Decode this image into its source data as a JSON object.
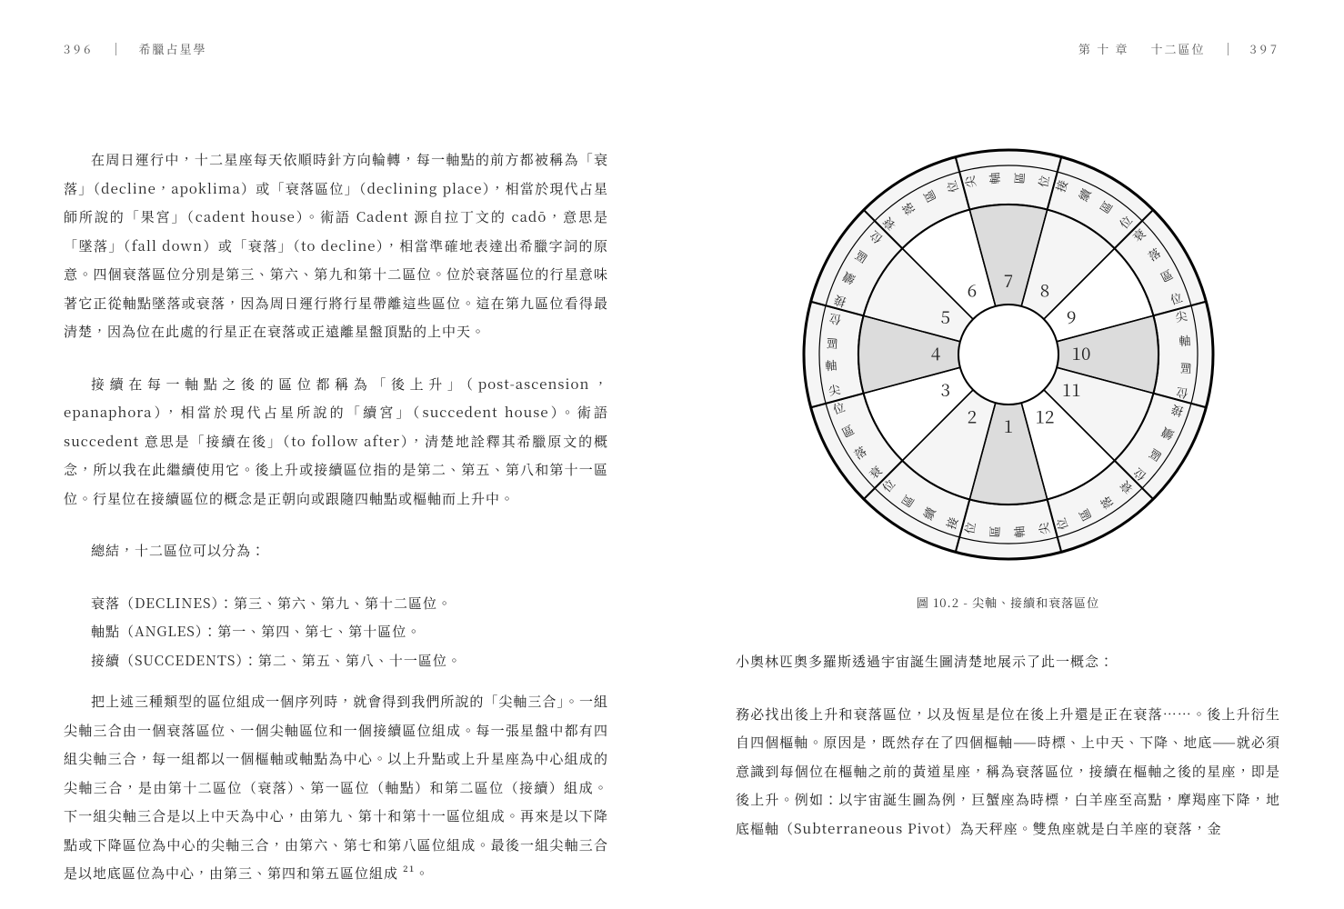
{
  "leftHeader": {
    "pageNum": "396",
    "bookTitle": "希臘占星學"
  },
  "rightHeader": {
    "chapter": "第 十 章",
    "section": "十二區位",
    "pageNum": "397"
  },
  "left": {
    "p1": "在周日運行中，十二星座每天依順時針方向輪轉，每一軸點的前方都被稱為「衰落」（decline，apoklima）或「衰落區位」（declining place），相當於現代占星師所說的「果宮」（cadent house）。術語 Cadent 源自拉丁文的 cadō，意思是「墜落」（fall down）或「衰落」（to decline），相當準確地表達出希臘字詞的原意。四個衰落區位分別是第三、第六、第九和第十二區位。位於衰落區位的行星意味著它正從軸點墜落或衰落，因為周日運行將行星帶離這些區位。這在第九區位看得最清楚，因為位在此處的行星正在衰落或正遠離星盤頂點的上中天。",
    "p2": "接續在每一軸點之後的區位都稱為「後上升」（post-ascension，epanaphora），相當於現代占星所說的「續宮」（succedent house）。術語 succedent 意思是「接續在後」（to follow after），清楚地詮釋其希臘原文的概念，所以我在此繼續使用它。後上升或接續區位指的是第二、第五、第八和第十一區位。行星位在接續區位的概念是正朝向或跟隨四軸點或樞軸而上升中。",
    "p3": "總結，十二區位可以分為：",
    "list1": "衰落（DECLINES）：第三、第六、第九、第十二區位。",
    "list2": "軸點（ANGLES）：第一、第四、第七、第十區位。",
    "list3": "接續（SUCCEDENTS）：第二、第五、第八、十一區位。",
    "p4": "把上述三種類型的區位組成一個序列時，就會得到我們所說的「尖軸三合」。一組尖軸三合由一個衰落區位、一個尖軸區位和一個接續區位組成。每一張星盤中都有四組尖軸三合，每一組都以一個樞軸或軸點為中心。以上升點或上升星座為中心組成的尖軸三合，是由第十二區位（衰落）、第一區位（軸點）和第二區位（接續）組成。下一組尖軸三合是以上中天為中心，由第九、第十和第十一區位組成。再來是以下降點或下降區位為中心的尖軸三合，由第六、第七和第八區位組成。最後一組尖軸三合是以地底區位為中心，由第三、第四和第五區位組成 ²¹。"
  },
  "right": {
    "caption": "圖 10.2 - 尖軸、接續和衰落區位",
    "p1": "小奧林匹奧多羅斯透過宇宙誕生圖清楚地展示了此一概念：",
    "p2": "務必找出後上升和衰落區位，以及恆星是位在後上升還是正在衰落……。後上升衍生自四個樞軸。原因是，既然存在了四個樞軸——時標、上中天、下降、地底——就必須意識到每個位在樞軸之前的黃道星座，稱為衰落區位，接續在樞軸之後的星座，即是後上升。例如：以宇宙誕生圖為例，巨蟹座為時標，白羊座至高點，摩羯座下降，地底樞軸（Subterraneous Pivot）為天秤座。雙魚座就是白羊座的衰落，金"
  },
  "chart": {
    "labels": {
      "angle": "尖軸區位",
      "succedent": "接續區位",
      "cadent": "衰落區位"
    },
    "colors": {
      "angle": "#dcdcdc",
      "succedent": "#f5f5f5",
      "cadent": "#ffffff",
      "stroke": "#000000",
      "ring": "#f5f5f5"
    },
    "houses": [
      {
        "num": 1,
        "type": "angle",
        "midDeg": 180
      },
      {
        "num": 2,
        "type": "succedent",
        "midDeg": 210
      },
      {
        "num": 3,
        "type": "cadent",
        "midDeg": 240
      },
      {
        "num": 4,
        "type": "angle",
        "midDeg": 270
      },
      {
        "num": 5,
        "type": "succedent",
        "midDeg": 300
      },
      {
        "num": 6,
        "type": "cadent",
        "midDeg": 330
      },
      {
        "num": 7,
        "type": "angle",
        "midDeg": 0
      },
      {
        "num": 8,
        "type": "succedent",
        "midDeg": 30
      },
      {
        "num": 9,
        "type": "cadent",
        "midDeg": 60
      },
      {
        "num": 10,
        "type": "angle",
        "midDeg": 90
      },
      {
        "num": 11,
        "type": "succedent",
        "midDeg": 120
      },
      {
        "num": 12,
        "type": "cadent",
        "midDeg": 150
      }
    ],
    "radii": {
      "outer": 225,
      "labelOuter": 208,
      "inner": 165,
      "numR": 80,
      "hub": 55
    }
  }
}
